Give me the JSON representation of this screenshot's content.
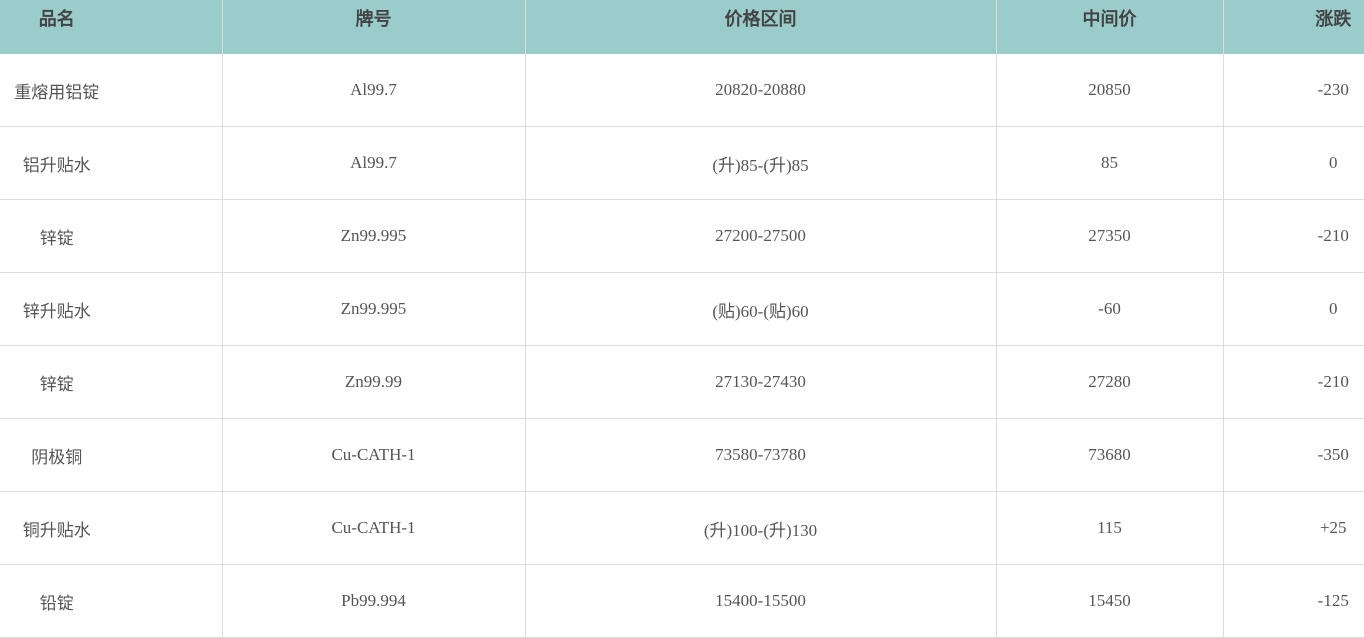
{
  "table": {
    "headers": [
      "品名",
      "牌号",
      "价格区间",
      "中间价",
      "涨跌"
    ],
    "rows": [
      [
        "重熔用铝锭",
        "Al99.7",
        "20820-20880",
        "20850",
        "-230"
      ],
      [
        "铝升贴水",
        "Al99.7",
        "(升)85-(升)85",
        "85",
        "0"
      ],
      [
        "锌锭",
        "Zn99.995",
        "27200-27500",
        "27350",
        "-210"
      ],
      [
        "锌升贴水",
        "Zn99.995",
        "(贴)60-(贴)60",
        "-60",
        "0"
      ],
      [
        "锌锭",
        "Zn99.99",
        "27130-27430",
        "27280",
        "-210"
      ],
      [
        "阴极铜",
        "Cu-CATH-1",
        "73580-73780",
        "73680",
        "-350"
      ],
      [
        "铜升贴水",
        "Cu-CATH-1",
        "(升)100-(升)130",
        "115",
        "+25"
      ],
      [
        "铅锭",
        "Pb99.994",
        "15400-15500",
        "15450",
        "-125"
      ]
    ]
  },
  "colors": {
    "header_bg": "#9acccc",
    "border": "#dcdcdc",
    "text": "#555555"
  }
}
